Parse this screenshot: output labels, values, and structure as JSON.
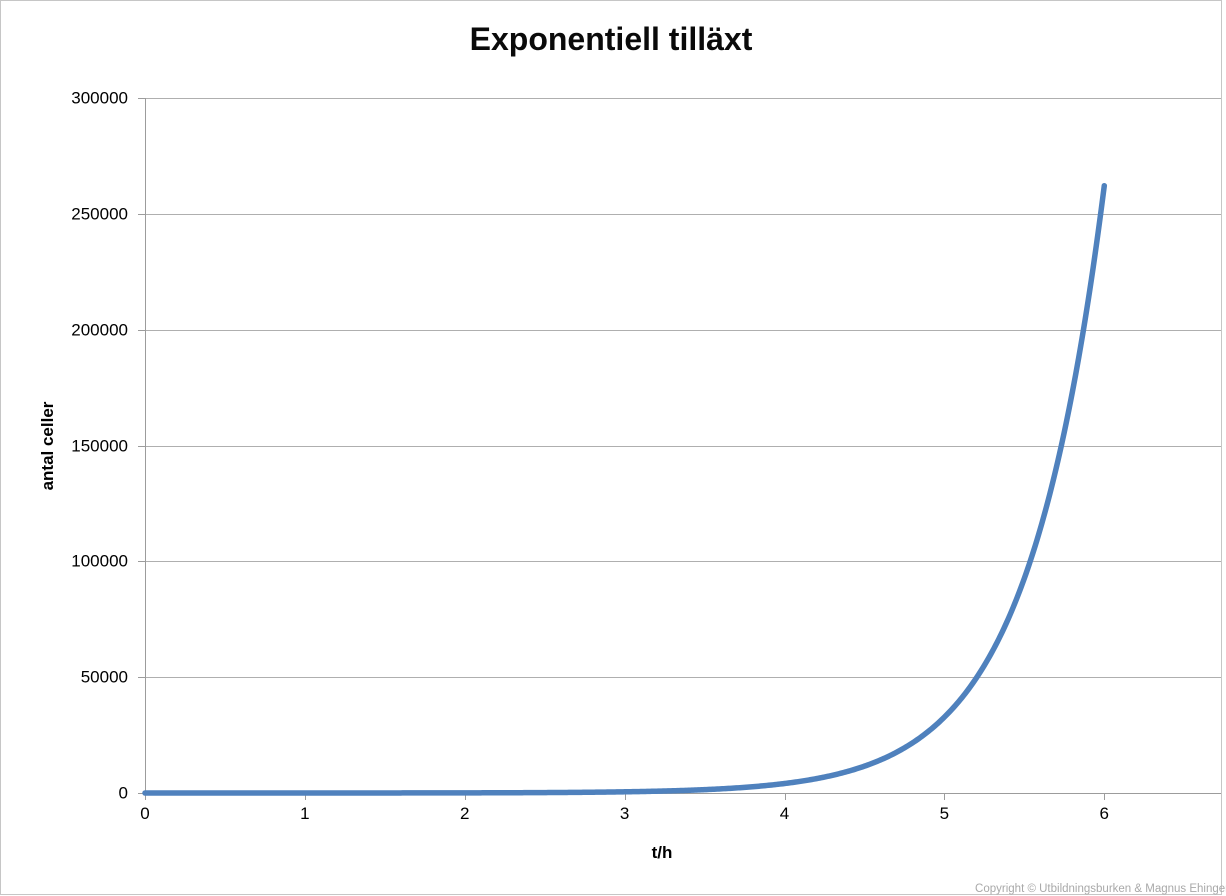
{
  "page": {
    "background": "#FFFFFF"
  },
  "footer": {
    "copyright": "Copyright © Utbildningsburken & Magnus Ehinger"
  },
  "chart_data": {
    "type": "line",
    "title": "Exponentiell tilläxt",
    "xlabel": "t/h",
    "ylabel": "antal celler",
    "xlim": [
      0,
      6.73
    ],
    "ylim": [
      0,
      300000
    ],
    "x_ticks": [
      0,
      1,
      2,
      3,
      4,
      5,
      6
    ],
    "y_ticks": [
      0,
      50000,
      100000,
      150000,
      200000,
      250000,
      300000
    ],
    "grid": "horizontal",
    "legend_position": "none",
    "gridline_color": "#AFAFAF",
    "axis_color": "#9C9C9C",
    "series": [
      {
        "name": "antal celler",
        "color": "#4F81BD",
        "line_width": 5.5,
        "growth_model": {
          "start": 1,
          "doublings_per_hour": 3,
          "formula": "N(t) = 2^(3t)"
        },
        "points": [
          [
            0,
            1
          ],
          [
            0.33,
            2
          ],
          [
            0.67,
            4
          ],
          [
            1,
            8
          ],
          [
            1.33,
            16
          ],
          [
            1.67,
            32
          ],
          [
            2,
            64
          ],
          [
            2.33,
            128
          ],
          [
            2.67,
            256
          ],
          [
            3,
            512
          ],
          [
            3.33,
            1024
          ],
          [
            3.67,
            2048
          ],
          [
            4,
            4096
          ],
          [
            4.33,
            8192
          ],
          [
            4.67,
            16384
          ],
          [
            5,
            32768
          ],
          [
            5.33,
            65536
          ],
          [
            5.67,
            131072
          ],
          [
            6,
            262144
          ]
        ]
      }
    ]
  }
}
